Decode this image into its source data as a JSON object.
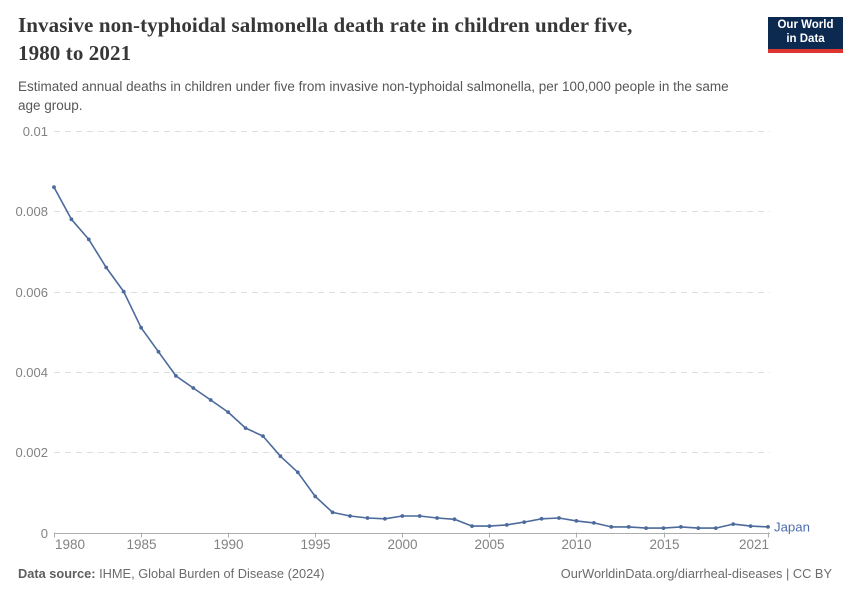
{
  "header": {
    "title_lines": [
      "Invasive non-typhoidal salmonella death rate in children under five,",
      "1980 to 2021"
    ],
    "subtitle_lines": [
      "Estimated annual deaths in children under five from invasive non-typhoidal salmonella, per 100,000 people in the same",
      "age group."
    ],
    "logo": {
      "line1": "Our World",
      "line2": "in Data"
    }
  },
  "footer": {
    "source_label": "Data source:",
    "source_text": " IHME, Global Burden of Disease (2024)",
    "link_text": "OurWorldinData.org/diarrheal-diseases | CC BY"
  },
  "colors": {
    "series": "#4C6A9C",
    "entity_label": "#4d6dae",
    "gridline": "#dedede",
    "axis_line": "#adadad",
    "tick_label": "#828282",
    "logo_bg": "#0c2950",
    "logo_red": "#dc3530"
  },
  "chart_data": {
    "type": "line",
    "title": "Invasive non-typhoidal salmonella death rate in children under five, 1980 to 2021",
    "subtitle": "Estimated annual deaths in children under five from invasive non-typhoidal salmonella, per 100,000 people in the same age group.",
    "xlabel": "",
    "ylabel": "",
    "xlim": [
      1980,
      2021
    ],
    "ylim": [
      0,
      0.01
    ],
    "grid": "horizontal-dashed",
    "legend_position": "end-of-line-label",
    "x": [
      1980,
      1981,
      1982,
      1983,
      1984,
      1985,
      1986,
      1987,
      1988,
      1989,
      1990,
      1991,
      1992,
      1993,
      1994,
      1995,
      1996,
      1997,
      1998,
      1999,
      2000,
      2001,
      2002,
      2003,
      2004,
      2005,
      2006,
      2007,
      2008,
      2009,
      2010,
      2011,
      2012,
      2013,
      2014,
      2015,
      2016,
      2017,
      2018,
      2019,
      2020,
      2021
    ],
    "series": [
      {
        "name": "Japan",
        "values": [
          0.0086,
          0.0078,
          0.0073,
          0.0066,
          0.006,
          0.0051,
          0.0045,
          0.0039,
          0.0036,
          0.0033,
          0.003,
          0.0026,
          0.0024,
          0.0019,
          0.0015,
          0.0009,
          0.0005,
          0.00041,
          0.00036,
          0.00034,
          0.00041,
          0.00041,
          0.00036,
          0.00033,
          0.00016,
          0.00016,
          0.00019,
          0.00026,
          0.00034,
          0.00036,
          0.00029,
          0.00024,
          0.00014,
          0.00014,
          0.00011,
          0.00011,
          0.00014,
          0.00011,
          0.00011,
          0.00021,
          0.00016,
          0.00014
        ]
      }
    ],
    "y_ticks": [
      {
        "value": 0,
        "label": "0"
      },
      {
        "value": 0.002,
        "label": "0.002"
      },
      {
        "value": 0.004,
        "label": "0.004"
      },
      {
        "value": 0.006,
        "label": "0.006"
      },
      {
        "value": 0.008,
        "label": "0.008"
      },
      {
        "value": 0.01,
        "label": "0.01"
      }
    ],
    "x_ticks": [
      {
        "value": 1980,
        "label": "1980"
      },
      {
        "value": 1985,
        "label": "1985"
      },
      {
        "value": 1990,
        "label": "1990"
      },
      {
        "value": 1995,
        "label": "1995"
      },
      {
        "value": 2000,
        "label": "2000"
      },
      {
        "value": 2005,
        "label": "2005"
      },
      {
        "value": 2010,
        "label": "2010"
      },
      {
        "value": 2015,
        "label": "2015"
      },
      {
        "value": 2021,
        "label": "2021"
      }
    ]
  }
}
